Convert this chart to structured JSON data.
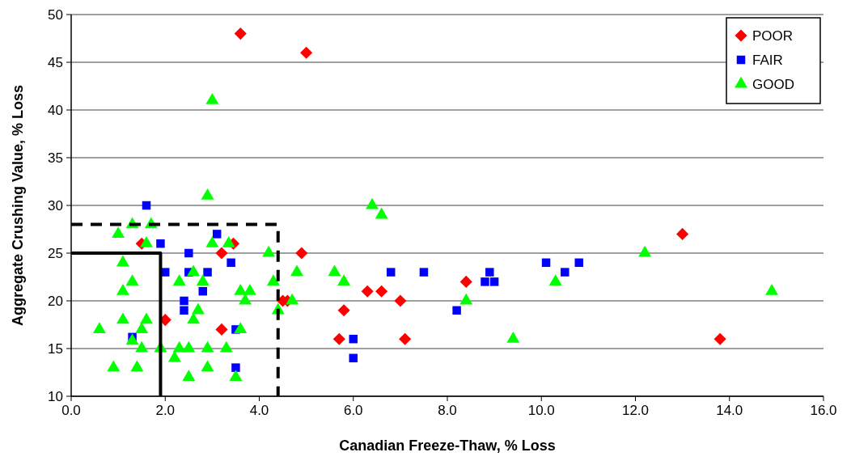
{
  "chart_data": {
    "type": "scatter",
    "xlabel": "Canadian Freeze-Thaw, % Loss",
    "ylabel": "Aggregate Crushing Value, % Loss",
    "xlim": [
      0,
      16
    ],
    "ylim": [
      10,
      50
    ],
    "xticks": [
      {
        "value": 0,
        "label": "0.0"
      },
      {
        "value": 2,
        "label": "2.0"
      },
      {
        "value": 4,
        "label": "4.0"
      },
      {
        "value": 6,
        "label": "6.0"
      },
      {
        "value": 8,
        "label": "8.0"
      },
      {
        "value": 10,
        "label": "10.0"
      },
      {
        "value": 12,
        "label": "12.0"
      },
      {
        "value": 14,
        "label": "14.0"
      },
      {
        "value": 16,
        "label": "16.0"
      }
    ],
    "yticks": [
      10,
      15,
      20,
      25,
      30,
      35,
      40,
      45,
      50
    ],
    "grid": "y",
    "legend": "top right",
    "series": [
      {
        "name": "POOR",
        "color": "#ff0000",
        "marker": "diamond",
        "x": [
          3.6,
          5.0,
          13.0,
          1.5,
          3.45,
          3.2,
          4.9,
          8.4,
          6.3,
          6.6,
          4.5,
          4.6,
          7.0,
          5.8,
          2.0,
          3.2,
          5.7,
          7.1,
          13.8
        ],
        "values": [
          48,
          46,
          27,
          26,
          26,
          25,
          25,
          22,
          21,
          21,
          20,
          20,
          20,
          19,
          18,
          17,
          16,
          16,
          16
        ]
      },
      {
        "name": "FAIR",
        "color": "#0000ff",
        "marker": "square",
        "x": [
          1.6,
          1.9,
          3.1,
          2.0,
          2.5,
          2.5,
          2.9,
          3.4,
          2.8,
          2.4,
          2.4,
          3.5,
          1.3,
          3.5,
          6.0,
          6.0,
          6.8,
          7.5,
          8.2,
          8.8,
          8.9,
          9.0,
          10.1,
          10.5,
          10.8
        ],
        "values": [
          30,
          26,
          27,
          23,
          25,
          23,
          23,
          24,
          21,
          20,
          19,
          17,
          16.2,
          13,
          16,
          14,
          23,
          23,
          19,
          22,
          23,
          22,
          24,
          23,
          24
        ]
      },
      {
        "name": "GOOD",
        "color": "#00ff00",
        "marker": "triangle",
        "x": [
          3.0,
          2.9,
          6.4,
          6.6,
          1.0,
          1.3,
          1.7,
          1.6,
          3.0,
          3.35,
          4.2,
          12.2,
          1.1,
          1.3,
          2.3,
          2.6,
          2.8,
          4.8,
          5.6,
          5.8,
          4.3,
          3.6,
          3.8,
          3.7,
          2.7,
          1.1,
          1.1,
          1.6,
          2.6,
          0.6,
          1.5,
          3.6,
          4.7,
          4.4,
          8.4,
          10.3,
          14.9,
          9.4,
          1.3,
          1.5,
          1.9,
          2.3,
          2.5,
          2.9,
          3.3,
          2.2,
          0.9,
          1.4,
          2.5,
          2.9,
          3.5
        ],
        "values": [
          41,
          31,
          30,
          29,
          27,
          28,
          28,
          26,
          26,
          26,
          25,
          25,
          24,
          22,
          22,
          23,
          22,
          23,
          23,
          22,
          22,
          21,
          21,
          20,
          19,
          21,
          18,
          18,
          18,
          17,
          17,
          17,
          20,
          19,
          20,
          22,
          21,
          16,
          15.8,
          15,
          15,
          15,
          15,
          15,
          15,
          14,
          13,
          13,
          12,
          13,
          12
        ]
      },
      {
        "type": "line",
        "color": "#000000",
        "line_style": "solid",
        "marker": "none",
        "x": [
          0,
          1.9,
          1.9
        ],
        "values": [
          25,
          25,
          10
        ]
      },
      {
        "type": "line",
        "color": "#000000",
        "line_style": "dashed",
        "marker": "none",
        "x": [
          0,
          4.4,
          4.4
        ],
        "values": [
          28,
          28,
          10
        ]
      }
    ]
  }
}
